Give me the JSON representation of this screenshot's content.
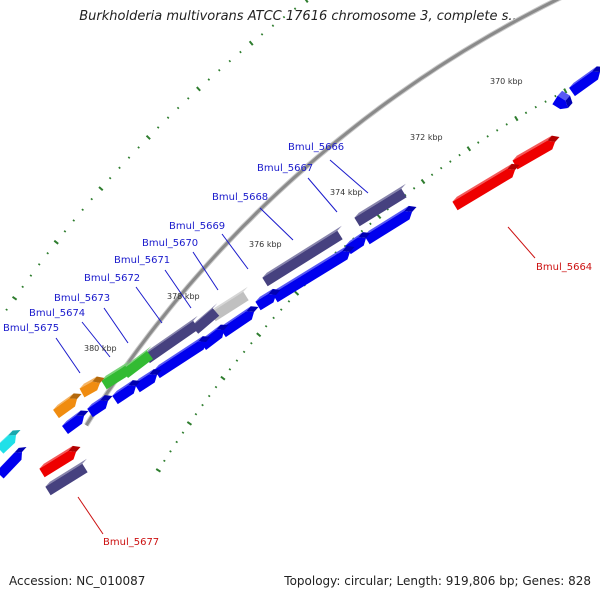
{
  "title": "Burkholderia multivorans ATCC 17616 chromosome 3, complete s...",
  "accession_text": "Accession: NC_010087",
  "summary_text": "Topology: circular; Length: 919,806 bp; Genes: 828",
  "colors": {
    "background": "#ffffff",
    "backbone": "#8a8a8a",
    "tick": "#2e7d2e",
    "cds": "#0000ee",
    "gene_dark": "#46417f",
    "rRNA_red": "#ee0000",
    "green": "#33bb33",
    "orange": "#f08c10",
    "cyan": "#20e0e8",
    "grey": "#c0c0c0",
    "label_blue": "#1a1acc",
    "label_red": "#cc1111"
  },
  "scale_labels": [
    "370 kbp",
    "372 kbp",
    "374 kbp",
    "376 kbp",
    "378 kbp",
    "380 kbp"
  ],
  "gene_labels": [
    {
      "text": "Bmul_5666",
      "color": "label_blue"
    },
    {
      "text": "Bmul_5667",
      "color": "label_blue"
    },
    {
      "text": "Bmul_5668",
      "color": "label_blue"
    },
    {
      "text": "Bmul_5669",
      "color": "label_blue"
    },
    {
      "text": "Bmul_5670",
      "color": "label_blue"
    },
    {
      "text": "Bmul_5671",
      "color": "label_blue"
    },
    {
      "text": "Bmul_5672",
      "color": "label_blue"
    },
    {
      "text": "Bmul_5673",
      "color": "label_blue"
    },
    {
      "text": "Bmul_5674",
      "color": "label_blue"
    },
    {
      "text": "Bmul_5675",
      "color": "label_blue"
    },
    {
      "text": "Bmul_5664",
      "color": "label_red"
    },
    {
      "text": "Bmul_5677",
      "color": "label_red"
    }
  ]
}
